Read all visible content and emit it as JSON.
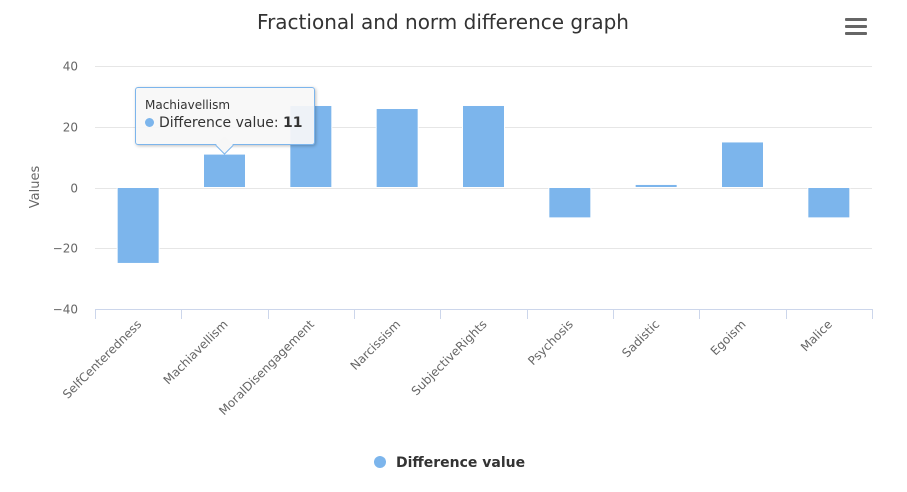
{
  "chart_data": {
    "type": "bar",
    "title": "Fractional and norm difference graph",
    "xlabel": "",
    "ylabel": "Values",
    "ylim": [
      -40,
      40
    ],
    "yticks": [
      -40,
      -20,
      0,
      20,
      40
    ],
    "yticks_labels": [
      "−40",
      "−20",
      "0",
      "20",
      "40"
    ],
    "grid": true,
    "legend_position": "bottom-center",
    "categories": [
      "SelfCenteredness",
      "Machiavellism",
      "MoralDisengagement",
      "Narcissism",
      "SubjectiveRights",
      "Psychosis",
      "Sadistic",
      "Egoism",
      "Malice"
    ],
    "series": [
      {
        "name": "Difference value",
        "color": "#7cb5ec",
        "values": [
          -25,
          11,
          27,
          26,
          27,
          -10,
          1,
          15,
          -10
        ]
      }
    ]
  },
  "tooltip": {
    "category": "Machiavellism",
    "series": "Difference value",
    "separator": ": ",
    "value": "11"
  },
  "menu_icon": "hamburger-menu-icon"
}
